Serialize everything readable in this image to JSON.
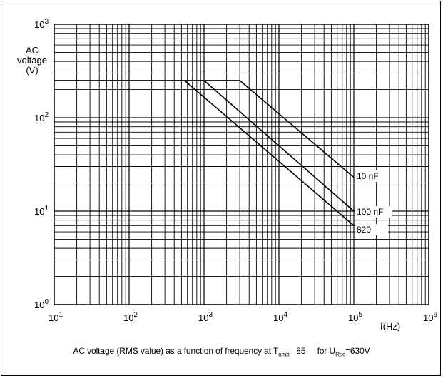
{
  "chart_data": {
    "type": "line",
    "ylabel": [
      "AC",
      "voltage",
      "(V)"
    ],
    "xlabel": "f(Hz)",
    "x_scale": "log",
    "y_scale": "log",
    "xlim": [
      10,
      1000000
    ],
    "ylim": [
      1,
      1000
    ],
    "x_ticks": [
      10,
      100,
      1000,
      10000,
      100000,
      1000000
    ],
    "y_ticks": [
      1,
      10,
      100,
      1000
    ],
    "grid": true,
    "series": [
      {
        "name": "10 nF",
        "points": [
          [
            3000,
            250
          ],
          [
            100000,
            23
          ]
        ]
      },
      {
        "name": "100 nF",
        "points": [
          [
            1000,
            250
          ],
          [
            100000,
            10
          ]
        ]
      },
      {
        "name": "820",
        "points": [
          [
            550,
            250
          ],
          [
            100000,
            7
          ]
        ]
      }
    ]
  },
  "caption": {
    "prefix": "AC voltage (RMS value) as a function of frequency at T",
    "sub1": "amb",
    "middle": "   85     for U",
    "sub2": "Rdc",
    "suffix": "=630V"
  }
}
